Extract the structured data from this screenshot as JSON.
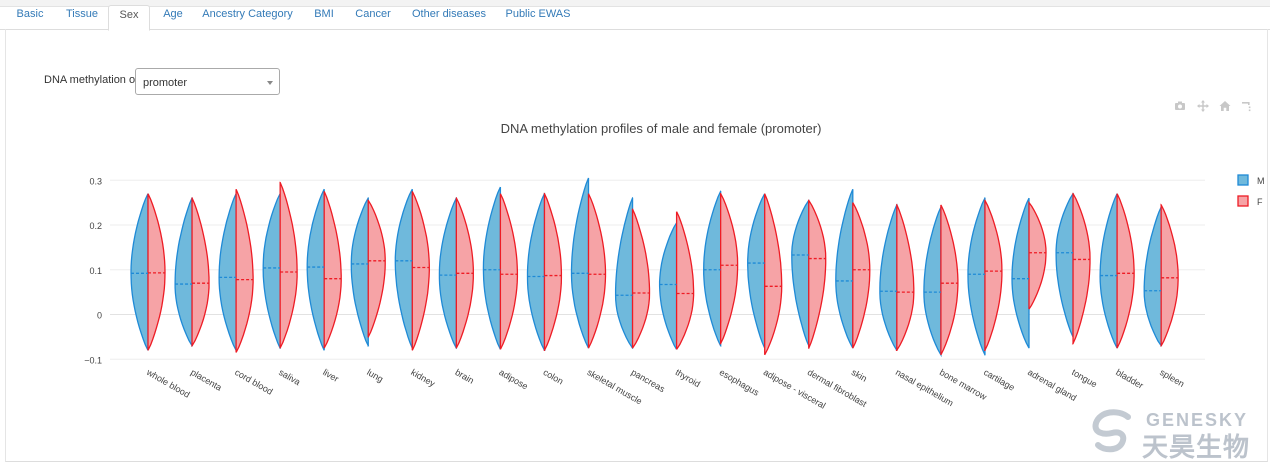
{
  "tabs": [
    {
      "label": "Basic",
      "active": false
    },
    {
      "label": "Tissue",
      "active": false
    },
    {
      "label": "Sex",
      "active": true
    },
    {
      "label": "Age",
      "active": false
    },
    {
      "label": "Ancestry Category",
      "active": false
    },
    {
      "label": "BMI",
      "active": false
    },
    {
      "label": "Cancer",
      "active": false
    },
    {
      "label": "Other diseases",
      "active": false
    },
    {
      "label": "Public EWAS",
      "active": false
    }
  ],
  "selector": {
    "label": "DNA methylation of",
    "value": "promoter"
  },
  "modebar": [
    "camera-icon",
    "pan-icon",
    "home-icon",
    "autoscale-icon"
  ],
  "logo": {
    "en": "GENESKY",
    "cn": "天昊生物"
  },
  "chart_data": {
    "type": "violin",
    "title": "DNA methylation profiles of male and female (promoter)",
    "xlabel": "",
    "ylabel": "",
    "ylim": [
      -0.1,
      0.3
    ],
    "yticks": [
      "0.3",
      "0.2",
      "0.1",
      "0",
      "−0.1"
    ],
    "colors": {
      "M": "#1f8ad6",
      "M_fill": "#6fb9dc",
      "F": "#ee1c25",
      "F_fill": "#f6a3a6"
    },
    "legend": {
      "position": "top-right",
      "entries": [
        "M",
        "F"
      ]
    },
    "grid": true,
    "categories": [
      "whole blood",
      "placenta",
      "cord blood",
      "saliva",
      "liver",
      "lung",
      "kidney",
      "brain",
      "adipose",
      "colon",
      "skeletal muscle",
      "pancreas",
      "thyroid",
      "esophagus",
      "adipose - visceral",
      "dermal fibroblast",
      "skin",
      "nasal epithelium",
      "bone marrow",
      "cartilage",
      "adrenal gland",
      "tongue",
      "bladder",
      "spleen"
    ],
    "series": [
      {
        "name": "M",
        "median": [
          0.092,
          0.068,
          0.083,
          0.104,
          0.106,
          0.113,
          0.12,
          0.088,
          0.1,
          0.085,
          0.092,
          0.043,
          0.067,
          0.1,
          0.115,
          0.133,
          0.075,
          0.052,
          0.05,
          0.09,
          0.08,
          0.138,
          0.087,
          0.053
        ],
        "min": [
          -0.08,
          -0.07,
          -0.08,
          -0.075,
          -0.08,
          -0.07,
          -0.075,
          -0.075,
          -0.078,
          -0.08,
          -0.075,
          -0.075,
          -0.078,
          -0.07,
          -0.075,
          -0.07,
          -0.075,
          -0.08,
          -0.09,
          -0.09,
          -0.075,
          -0.05,
          -0.075,
          -0.07
        ],
        "max": [
          0.27,
          0.26,
          0.27,
          0.27,
          0.28,
          0.26,
          0.28,
          0.26,
          0.285,
          0.27,
          0.305,
          0.26,
          0.205,
          0.275,
          0.27,
          0.255,
          0.28,
          0.245,
          0.24,
          0.26,
          0.26,
          0.27,
          0.27,
          0.24
        ]
      },
      {
        "name": "F",
        "median": [
          0.093,
          0.07,
          0.078,
          0.095,
          0.08,
          0.12,
          0.105,
          0.092,
          0.09,
          0.087,
          0.09,
          0.048,
          0.047,
          0.11,
          0.063,
          0.125,
          0.1,
          0.05,
          0.07,
          0.097,
          0.138,
          0.123,
          0.092,
          0.082
        ],
        "min": [
          -0.08,
          -0.07,
          -0.085,
          -0.075,
          -0.075,
          -0.05,
          -0.08,
          -0.075,
          -0.078,
          -0.08,
          -0.075,
          -0.075,
          -0.078,
          -0.065,
          -0.09,
          -0.075,
          -0.075,
          -0.08,
          -0.09,
          -0.08,
          0.012,
          -0.065,
          -0.075,
          -0.07
        ],
        "max": [
          0.27,
          0.26,
          0.28,
          0.295,
          0.275,
          0.255,
          0.275,
          0.26,
          0.27,
          0.27,
          0.27,
          0.235,
          0.23,
          0.27,
          0.27,
          0.255,
          0.25,
          0.245,
          0.245,
          0.255,
          0.25,
          0.27,
          0.27,
          0.245
        ]
      }
    ]
  }
}
